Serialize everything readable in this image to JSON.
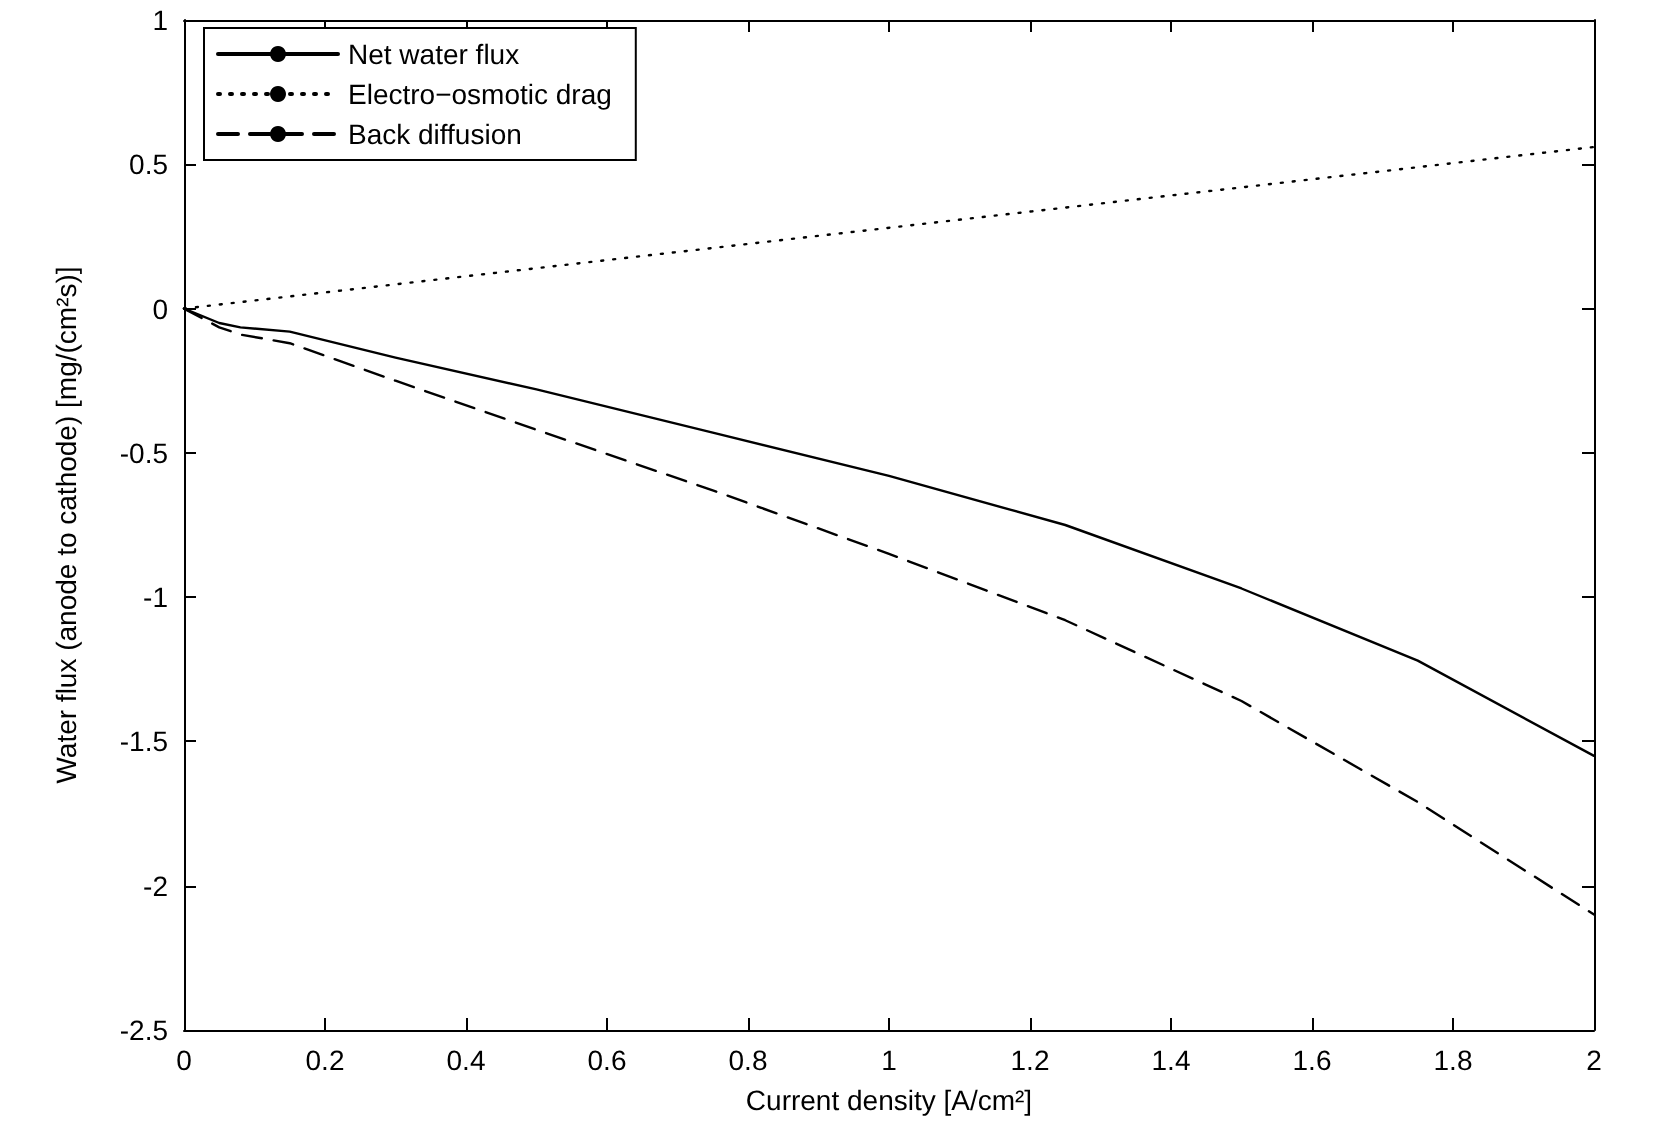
{
  "chart_data": {
    "type": "line",
    "xlabel": "Current density [A/cm²]",
    "ylabel": "Water flux (anode to cathode) [mg/(cm²s)]",
    "xlim": [
      0,
      2
    ],
    "xticks": [
      0,
      0.2,
      0.4,
      0.6,
      0.8,
      1,
      1.2,
      1.4,
      1.6,
      1.8,
      2
    ],
    "ylim": [
      -2.5,
      1
    ],
    "yticks": [
      -2.5,
      -2,
      -1.5,
      -1,
      -0.5,
      0,
      0.5,
      1
    ],
    "grid": false,
    "legend": "top left",
    "marker": "none",
    "series": [
      {
        "name": "Net water flux",
        "color": "#000000",
        "line_style": "solid",
        "x": [
          0,
          0.05,
          0.08,
          0.15,
          0.3,
          0.5,
          0.75,
          1,
          1.25,
          1.5,
          1.75,
          2
        ],
        "values": [
          0,
          -0.05,
          -0.065,
          -0.08,
          -0.17,
          -0.28,
          -0.43,
          -0.58,
          -0.75,
          -0.97,
          -1.22,
          -1.55
        ]
      },
      {
        "name": "Electro−osmotic drag",
        "color": "#000000",
        "line_style": "dotted",
        "x": [
          0,
          2
        ],
        "values": [
          0,
          0.56
        ]
      },
      {
        "name": "Back diffusion",
        "color": "#000000",
        "line_style": "dashed",
        "x": [
          0,
          0.05,
          0.08,
          0.15,
          0.3,
          0.5,
          0.75,
          1,
          1.25,
          1.5,
          1.75,
          2
        ],
        "values": [
          0,
          -0.065,
          -0.09,
          -0.12,
          -0.25,
          -0.42,
          -0.63,
          -0.85,
          -1.08,
          -1.36,
          -1.71,
          -2.1
        ]
      }
    ]
  }
}
